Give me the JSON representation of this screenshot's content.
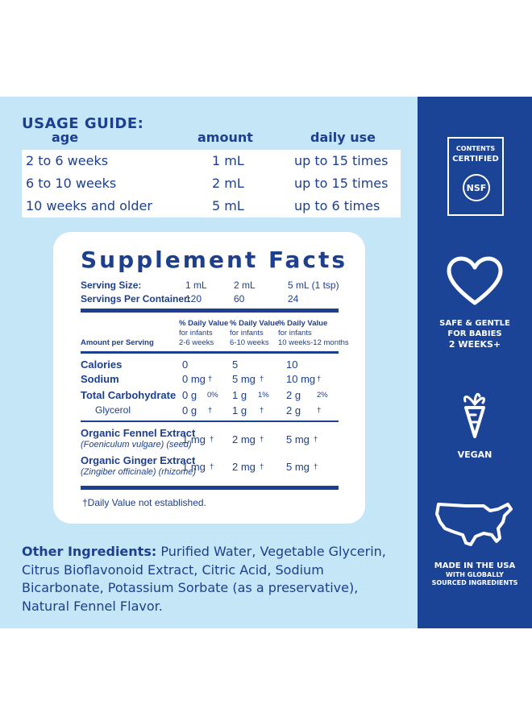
{
  "usage_guide": {
    "title": "USAGE GUIDE:",
    "headers": {
      "age": "age",
      "amount": "amount",
      "daily_use": "daily use"
    },
    "rows": [
      {
        "age": "2 to 6 weeks",
        "amount": "1 mL",
        "daily_use": "up to 15 times"
      },
      {
        "age": "6 to 10 weeks",
        "amount": "2 mL",
        "daily_use": "up to 15 times"
      },
      {
        "age": "10 weeks and older",
        "amount": "5 mL",
        "daily_use": "up to 6 times"
      }
    ]
  },
  "supplement_facts": {
    "title": "Supplement Facts",
    "serving_size_label": "Serving Size:",
    "serving_sizes": [
      "1 mL",
      "2 mL",
      "5 mL (1 tsp)"
    ],
    "servings_label": "Servings Per Container:",
    "servings": [
      "120",
      "60",
      "24"
    ],
    "amount_label": "Amount per Serving",
    "dv_columns": [
      {
        "l1": "% Daily Value",
        "l2": "for infants",
        "l3": "2-6 weeks"
      },
      {
        "l1": "% Daily Value",
        "l2": "for infants",
        "l3": "6-10 weeks"
      },
      {
        "l1": "% Daily Value",
        "l2": "for infants",
        "l3": "10 weeks-12 months"
      }
    ],
    "nutrients": [
      {
        "name": "Calories",
        "v": [
          "0",
          "5",
          "10"
        ],
        "dv": [
          "",
          "",
          ""
        ]
      },
      {
        "name": "Sodium",
        "v": [
          "0 mg",
          "5 mg",
          "10 mg"
        ],
        "dv": [
          "†",
          "†",
          "†"
        ]
      },
      {
        "name": "Total Carbohydrate",
        "v": [
          "0 g",
          "1 g",
          "2 g"
        ],
        "dv": [
          "0%",
          "1%",
          "2%"
        ]
      },
      {
        "name": "Glycerol",
        "v": [
          "0 g",
          "1 g",
          "2 g"
        ],
        "dv": [
          "†",
          "†",
          "†"
        ]
      }
    ],
    "extracts": [
      {
        "name": "Organic Fennel Extract",
        "sub": "(Foeniculum vulgare) (seed)",
        "v": [
          "1 mg",
          "2 mg",
          "5 mg"
        ],
        "dv": [
          "†",
          "†",
          "†"
        ]
      },
      {
        "name": "Organic Ginger Extract",
        "sub": "(Zingiber officinale) (rhizome)",
        "v": [
          "1 mg",
          "2 mg",
          "5 mg"
        ],
        "dv": [
          "†",
          "†",
          "†"
        ]
      }
    ],
    "footnote": "†Daily Value not established."
  },
  "other_ingredients": {
    "label": "Other Ingredients:",
    "text": " Purified Water, Vegetable Glycerin, Citrus Bioflavonoid Extract, Citric Acid, Sodium Bicarbonate, Potassium Sorbate (as a preservative), Natural Fennel Flavor."
  },
  "sidebar": {
    "badge": {
      "line1": "CONTENTS",
      "line2": "CERTIFIED",
      "logo": "NSF"
    },
    "safe_lines": [
      "SAFE & GENTLE",
      "FOR BABIES",
      "2 WEEKS+"
    ],
    "vegan": "VEGAN",
    "made_lines": [
      "MADE IN THE USA",
      "WITH GLOBALLY",
      "SOURCED INGREDIENTS"
    ],
    "icons": [
      "heart-icon",
      "carrot-icon",
      "usa-map-icon"
    ]
  },
  "colors": {
    "navy": "#1b4396",
    "panel": "#c5e6f7",
    "text": "#1c3f8f"
  }
}
